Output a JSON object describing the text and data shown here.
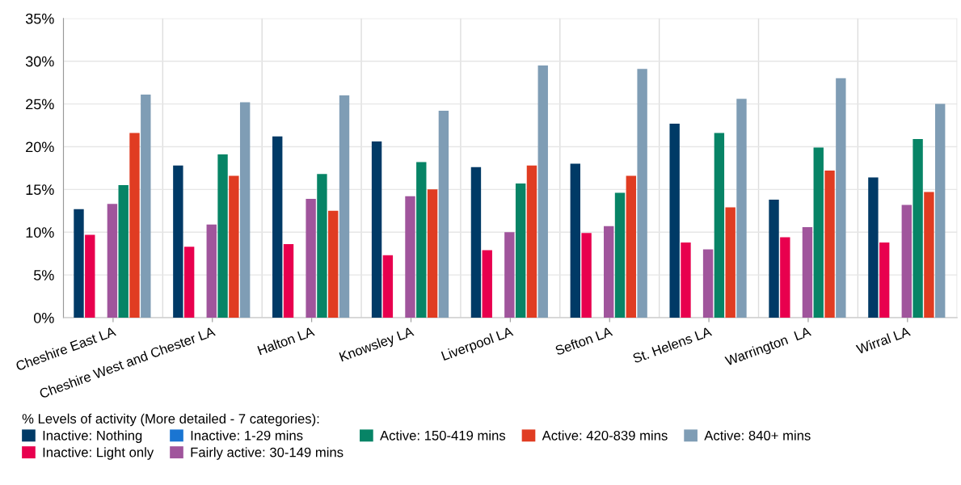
{
  "chart_data": {
    "type": "bar",
    "categories": [
      "Cheshire East LA",
      "Cheshire West and Chester LA",
      "Halton LA",
      "Knowsley LA",
      "Liverpool LA",
      "Sefton LA",
      "St. Helens LA",
      "Warrington  LA",
      "Wirral LA"
    ],
    "series": [
      {
        "name": "Inactive: Nothing",
        "color": "#003a66",
        "values": [
          12.7,
          17.8,
          21.2,
          20.6,
          17.6,
          18.0,
          22.7,
          13.8,
          16.4
        ]
      },
      {
        "name": "Inactive: Light only",
        "color": "#e8004e",
        "values": [
          9.7,
          8.3,
          8.6,
          7.3,
          7.9,
          9.9,
          8.8,
          9.4,
          8.8
        ]
      },
      {
        "name": "Inactive: 1-29 mins",
        "color": "#1a75d2",
        "values": [
          null,
          null,
          null,
          null,
          null,
          null,
          null,
          null,
          null
        ]
      },
      {
        "name": "Fairly active: 30-149 mins",
        "color": "#a0559c",
        "values": [
          13.3,
          10.9,
          13.9,
          14.2,
          10.0,
          10.7,
          8.0,
          10.6,
          13.2
        ]
      },
      {
        "name": "Active: 150-419 mins",
        "color": "#078466",
        "values": [
          15.5,
          19.1,
          16.8,
          18.2,
          15.7,
          14.6,
          21.6,
          19.9,
          20.9
        ]
      },
      {
        "name": "Active: 420-839 mins",
        "color": "#e03c22",
        "values": [
          21.6,
          16.6,
          12.5,
          15.0,
          17.8,
          16.6,
          12.9,
          17.2,
          14.7
        ]
      },
      {
        "name": "Active: 840+ mins",
        "color": "#7f9db5",
        "values": [
          26.1,
          25.2,
          26.0,
          24.2,
          29.5,
          29.1,
          25.6,
          28.0,
          25.0
        ]
      }
    ],
    "ylim": [
      0,
      35
    ],
    "yticks": [
      {
        "value": 0,
        "label": "0%"
      },
      {
        "value": 5,
        "label": "5%"
      },
      {
        "value": 10,
        "label": "10%"
      },
      {
        "value": 15,
        "label": "15%"
      },
      {
        "value": 20,
        "label": "20%"
      },
      {
        "value": 25,
        "label": "25%"
      },
      {
        "value": 30,
        "label": "30%"
      },
      {
        "value": 35,
        "label": "35%"
      }
    ],
    "grid": true,
    "legend": "bottom",
    "legend_title": "% Levels of activity (More detailed - 7 categories):"
  }
}
